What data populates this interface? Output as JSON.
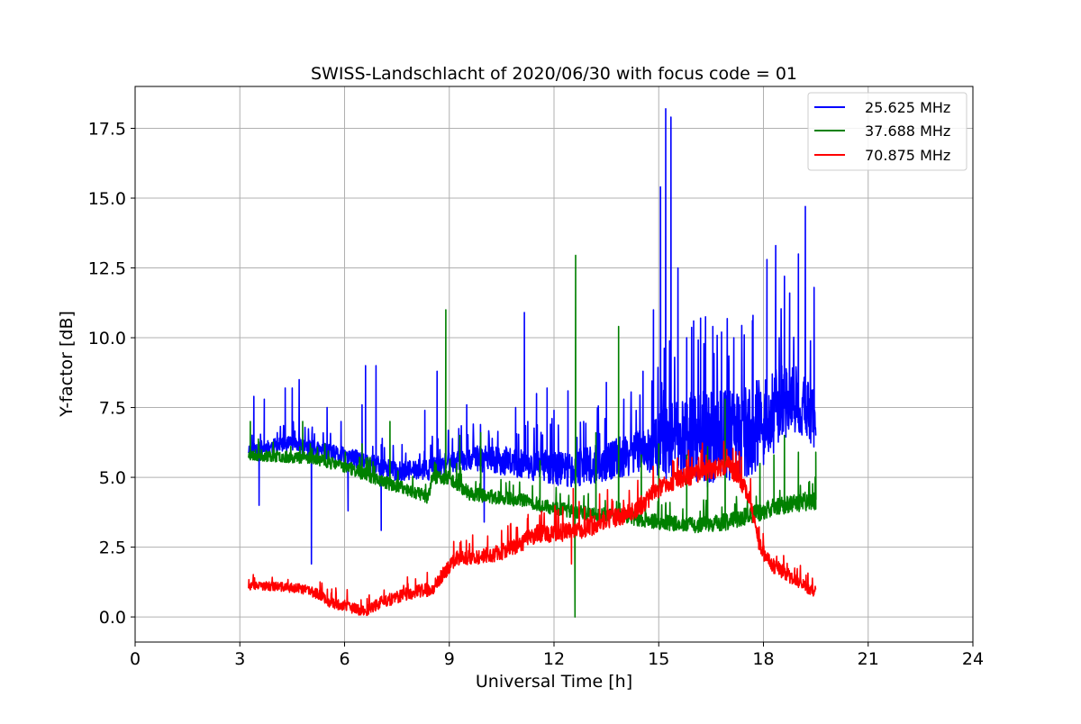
{
  "chart_data": {
    "type": "line",
    "title": "SWISS-Landschlacht of 2020/06/30 with focus code = 01",
    "xlabel": "Universal Time [h]",
    "ylabel": "Y-factor [dB]",
    "xlim": [
      0,
      24
    ],
    "ylim": [
      -0.9,
      19.0
    ],
    "x_ticks": [
      0,
      3,
      6,
      9,
      12,
      15,
      18,
      21,
      24
    ],
    "x_tick_labels": [
      "0",
      "3",
      "6",
      "9",
      "12",
      "15",
      "18",
      "21",
      "24"
    ],
    "y_ticks": [
      0,
      2.5,
      5,
      7.5,
      10,
      12.5,
      15,
      17.5
    ],
    "y_tick_labels": [
      "0.0",
      "2.5",
      "5.0",
      "7.5",
      "10.0",
      "12.5",
      "15.0",
      "17.5"
    ],
    "grid": true,
    "legend_position": "top-right",
    "series": [
      {
        "name": "25.625 MHz",
        "color": "#0000ff",
        "base": [
          [
            3.25,
            6.0
          ],
          [
            4.5,
            6.2
          ],
          [
            5.5,
            5.9
          ],
          [
            6.5,
            5.6
          ],
          [
            7.5,
            5.2
          ],
          [
            8.5,
            5.3
          ],
          [
            9.5,
            5.7
          ],
          [
            10.5,
            5.6
          ],
          [
            11.5,
            5.4
          ],
          [
            12.5,
            5.3
          ],
          [
            13.5,
            5.5
          ],
          [
            14.5,
            6.0
          ],
          [
            15.5,
            6.3
          ],
          [
            16.5,
            6.4
          ],
          [
            17.5,
            6.6
          ],
          [
            18.0,
            7.0
          ],
          [
            18.5,
            7.6
          ],
          [
            19.0,
            7.8
          ],
          [
            19.5,
            7.0
          ]
        ],
        "noise": [
          [
            3.25,
            0.25
          ],
          [
            9.0,
            0.4
          ],
          [
            14.5,
            0.8
          ],
          [
            16.0,
            1.8
          ],
          [
            18.0,
            1.6
          ],
          [
            19.5,
            1.0
          ]
        ],
        "spikes": [
          [
            3.4,
            7.9
          ],
          [
            3.55,
            4.0
          ],
          [
            3.7,
            7.8
          ],
          [
            4.3,
            8.2
          ],
          [
            4.5,
            8.2
          ],
          [
            4.7,
            8.5
          ],
          [
            5.05,
            1.9
          ],
          [
            5.5,
            7.5
          ],
          [
            5.9,
            7.0
          ],
          [
            6.1,
            3.8
          ],
          [
            6.5,
            7.6
          ],
          [
            6.6,
            9.0
          ],
          [
            6.9,
            9.0
          ],
          [
            7.05,
            3.1
          ],
          [
            8.3,
            7.4
          ],
          [
            8.65,
            8.8
          ],
          [
            9.5,
            7.6
          ],
          [
            10.0,
            3.4
          ],
          [
            10.9,
            7.5
          ],
          [
            11.15,
            10.9
          ],
          [
            11.25,
            7.0
          ],
          [
            11.5,
            8.0
          ],
          [
            11.8,
            8.2
          ],
          [
            12.0,
            7.4
          ],
          [
            12.4,
            8.1
          ],
          [
            12.85,
            7.0
          ],
          [
            13.5,
            8.4
          ],
          [
            14.0,
            7.8
          ],
          [
            14.55,
            8.8
          ],
          [
            14.85,
            11.0
          ],
          [
            15.05,
            15.4
          ],
          [
            15.2,
            18.2
          ],
          [
            15.35,
            17.9
          ],
          [
            15.55,
            12.5
          ],
          [
            15.8,
            10.0
          ],
          [
            16.0,
            10.6
          ],
          [
            16.2,
            10.7
          ],
          [
            16.55,
            10.4
          ],
          [
            16.8,
            10.2
          ],
          [
            17.15,
            10.0
          ],
          [
            17.45,
            10.1
          ],
          [
            17.7,
            10.8
          ],
          [
            18.1,
            12.8
          ],
          [
            18.35,
            13.3
          ],
          [
            18.6,
            12.2
          ],
          [
            18.75,
            11.6
          ],
          [
            19.0,
            13.0
          ],
          [
            19.2,
            14.7
          ],
          [
            19.45,
            11.8
          ]
        ],
        "seed": 11
      },
      {
        "name": "37.688 MHz",
        "color": "#008000",
        "base": [
          [
            3.25,
            5.8
          ],
          [
            5.0,
            5.7
          ],
          [
            6.0,
            5.4
          ],
          [
            7.0,
            4.9
          ],
          [
            8.4,
            4.3
          ],
          [
            8.5,
            5.0
          ],
          [
            9.0,
            5.0
          ],
          [
            9.6,
            4.4
          ],
          [
            11.0,
            4.2
          ],
          [
            12.0,
            3.9
          ],
          [
            13.0,
            3.7
          ],
          [
            14.0,
            3.6
          ],
          [
            15.0,
            3.4
          ],
          [
            16.0,
            3.3
          ],
          [
            17.0,
            3.4
          ],
          [
            17.5,
            3.6
          ],
          [
            18.0,
            3.8
          ],
          [
            18.5,
            4.0
          ],
          [
            19.5,
            4.2
          ]
        ],
        "noise": [
          [
            3.25,
            0.2
          ],
          [
            9.0,
            0.25
          ],
          [
            14.0,
            0.25
          ],
          [
            19.5,
            0.35
          ]
        ],
        "spikes": [
          [
            3.3,
            7.0
          ],
          [
            4.8,
            7.0
          ],
          [
            6.5,
            6.2
          ],
          [
            7.3,
            7.0
          ],
          [
            8.9,
            11.0
          ],
          [
            9.3,
            6.5
          ],
          [
            9.9,
            6.6
          ],
          [
            11.6,
            5.6
          ],
          [
            12.6,
            0.0
          ],
          [
            12.62,
            12.95
          ],
          [
            13.2,
            6.6
          ],
          [
            13.85,
            10.4
          ],
          [
            14.5,
            5.8
          ],
          [
            15.0,
            6.2
          ],
          [
            15.8,
            5.8
          ],
          [
            16.4,
            6.1
          ],
          [
            16.9,
            7.8
          ],
          [
            17.9,
            5.5
          ],
          [
            18.3,
            5.8
          ],
          [
            18.6,
            6.5
          ],
          [
            19.0,
            5.9
          ],
          [
            19.5,
            5.9
          ]
        ],
        "seed": 23
      },
      {
        "name": "70.875 MHz",
        "color": "#ff0000",
        "base": [
          [
            3.25,
            1.1
          ],
          [
            4.0,
            1.1
          ],
          [
            4.8,
            1.0
          ],
          [
            5.3,
            0.8
          ],
          [
            5.6,
            0.5
          ],
          [
            6.0,
            0.4
          ],
          [
            6.6,
            0.2
          ],
          [
            7.0,
            0.5
          ],
          [
            7.5,
            0.7
          ],
          [
            8.0,
            0.9
          ],
          [
            8.5,
            1.0
          ],
          [
            8.8,
            1.5
          ],
          [
            9.2,
            2.1
          ],
          [
            10.0,
            2.2
          ],
          [
            10.5,
            2.3
          ],
          [
            11.0,
            2.6
          ],
          [
            11.5,
            3.0
          ],
          [
            12.0,
            3.0
          ],
          [
            12.5,
            3.1
          ],
          [
            13.0,
            3.2
          ],
          [
            13.5,
            3.5
          ],
          [
            14.0,
            3.6
          ],
          [
            14.5,
            4.0
          ],
          [
            15.0,
            4.6
          ],
          [
            15.5,
            4.9
          ],
          [
            16.0,
            5.1
          ],
          [
            16.5,
            5.3
          ],
          [
            17.0,
            5.4
          ],
          [
            17.3,
            5.0
          ],
          [
            17.6,
            4.2
          ],
          [
            17.9,
            2.5
          ],
          [
            18.2,
            1.9
          ],
          [
            18.6,
            1.6
          ],
          [
            19.0,
            1.2
          ],
          [
            19.5,
            0.9
          ]
        ],
        "noise": [
          [
            3.25,
            0.15
          ],
          [
            8.8,
            0.25
          ],
          [
            12.0,
            0.35
          ],
          [
            17.0,
            0.35
          ],
          [
            19.5,
            0.2
          ]
        ],
        "spikes": [
          [
            10.1,
            2.9
          ],
          [
            12.5,
            1.9
          ],
          [
            12.55,
            4.6
          ],
          [
            16.95,
            6.0
          ]
        ],
        "seed": 37
      }
    ]
  }
}
